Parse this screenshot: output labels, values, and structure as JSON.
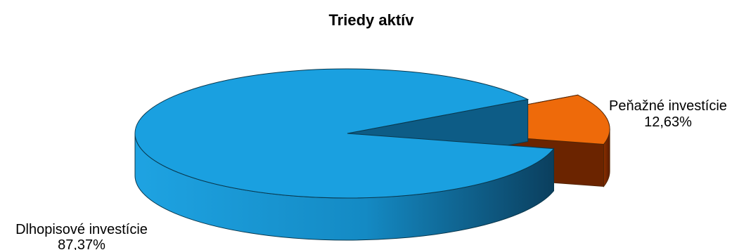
{
  "chart_data": {
    "type": "pie",
    "title": "Triedy aktív",
    "slices": [
      {
        "label": "Dlhopisové investície",
        "value_label": "87,37%",
        "value": 87.37,
        "color": "#1aa0e0"
      },
      {
        "label": "Peňažné investície",
        "value_label": "12,63%",
        "value": 12.63,
        "color": "#ee6a0a"
      }
    ],
    "legend": "none"
  }
}
